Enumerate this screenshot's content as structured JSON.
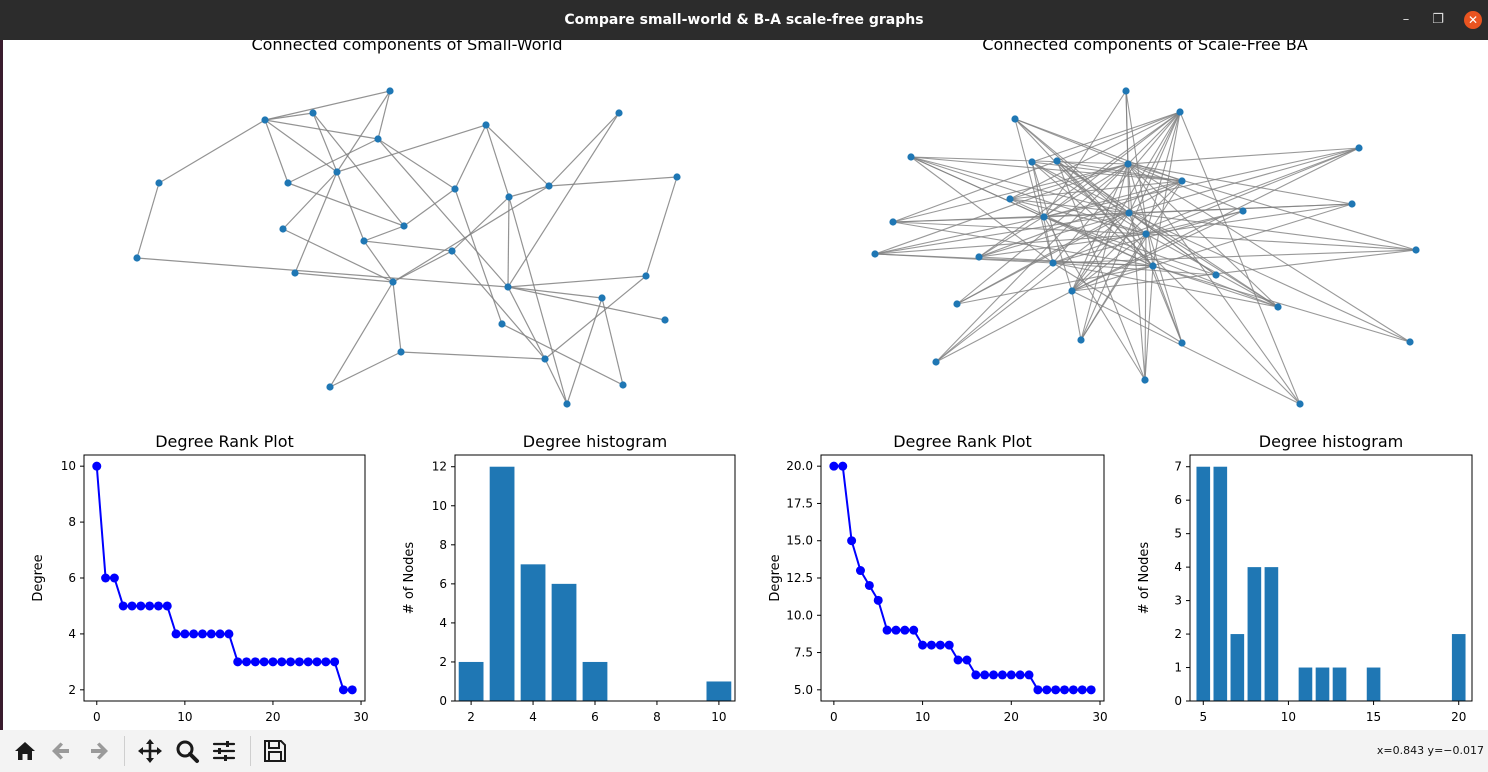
{
  "window": {
    "title": "Compare small-world & B-A scale-free graphs",
    "controls": [
      "minimize",
      "maximize",
      "close"
    ]
  },
  "icons": {
    "minimize": "–",
    "maximize": "❐",
    "close": "✕"
  },
  "toolbar": {
    "buttons": [
      "home-icon",
      "back-arrow-icon",
      "forward-arrow-icon",
      "pan-icon",
      "zoom-icon",
      "configure-subplots-icon",
      "save-icon"
    ],
    "coords": "x=0.843 y=−0.017"
  },
  "colors": {
    "node": "#1f77b4",
    "edge": "#808080",
    "rank_line": "#0000ff",
    "bar": "#1f77b4"
  },
  "graphs": {
    "sw_title": "Connected components of Small-World",
    "ba_title": "Connected components of Scale-Free BA"
  },
  "chart_data": [
    {
      "type": "line",
      "title": "Degree Rank Plot",
      "xlabel": "",
      "ylabel": "Degree",
      "x": [
        0,
        1,
        2,
        3,
        4,
        5,
        6,
        7,
        8,
        9,
        10,
        11,
        12,
        13,
        14,
        15,
        16,
        17,
        18,
        19,
        20,
        21,
        22,
        23,
        24,
        25,
        26,
        27,
        28,
        29
      ],
      "y": [
        10,
        6,
        6,
        5,
        5,
        5,
        5,
        5,
        5,
        4,
        4,
        4,
        4,
        4,
        4,
        4,
        3,
        3,
        3,
        3,
        3,
        3,
        3,
        3,
        3,
        3,
        3,
        3,
        2,
        2
      ],
      "xticks": [
        "0",
        "10",
        "20",
        "30"
      ],
      "yticks": [
        "2",
        "4",
        "6",
        "8",
        "10"
      ],
      "xlim": [
        -1.45,
        30.45
      ],
      "ylim": [
        1.6,
        10.4
      ]
    },
    {
      "type": "bar",
      "title": "Degree histogram",
      "xlabel": "",
      "ylabel": "# of Nodes",
      "categories": [
        2,
        3,
        4,
        5,
        6,
        10
      ],
      "values": [
        2,
        12,
        7,
        6,
        2,
        1
      ],
      "xticks": [
        "2",
        "4",
        "6",
        "8",
        "10"
      ],
      "yticks": [
        "0",
        "2",
        "4",
        "6",
        "8",
        "10",
        "12"
      ],
      "xlim": [
        1.48,
        10.52
      ],
      "ylim": [
        0,
        12.6
      ]
    },
    {
      "type": "line",
      "title": "Degree Rank Plot",
      "xlabel": "",
      "ylabel": "Degree",
      "x": [
        0,
        1,
        2,
        3,
        4,
        5,
        6,
        7,
        8,
        9,
        10,
        11,
        12,
        13,
        14,
        15,
        16,
        17,
        18,
        19,
        20,
        21,
        22,
        23,
        24,
        25,
        26,
        27,
        28,
        29
      ],
      "y": [
        20,
        20,
        15,
        13,
        12,
        11,
        9,
        9,
        9,
        9,
        8,
        8,
        8,
        8,
        7,
        7,
        6,
        6,
        6,
        6,
        6,
        6,
        6,
        5,
        5,
        5,
        5,
        5,
        5,
        5
      ],
      "xticks": [
        "0",
        "10",
        "20",
        "30"
      ],
      "yticks": [
        "5.0",
        "7.5",
        "10.0",
        "12.5",
        "15.0",
        "17.5",
        "20.0"
      ],
      "xlim": [
        -1.45,
        30.45
      ],
      "ylim": [
        4.25,
        20.75
      ]
    },
    {
      "type": "bar",
      "title": "Degree histogram",
      "xlabel": "",
      "ylabel": "# of Nodes",
      "categories": [
        5,
        6,
        7,
        8,
        9,
        11,
        12,
        13,
        15,
        20
      ],
      "values": [
        7,
        7,
        2,
        4,
        4,
        1,
        1,
        1,
        1,
        2
      ],
      "xticks": [
        "5",
        "10",
        "15",
        "20"
      ],
      "yticks": [
        "0",
        "1",
        "2",
        "3",
        "4",
        "5",
        "6",
        "7"
      ],
      "xlim": [
        4.22,
        20.78
      ],
      "ylim": [
        0,
        7.35
      ]
    }
  ]
}
